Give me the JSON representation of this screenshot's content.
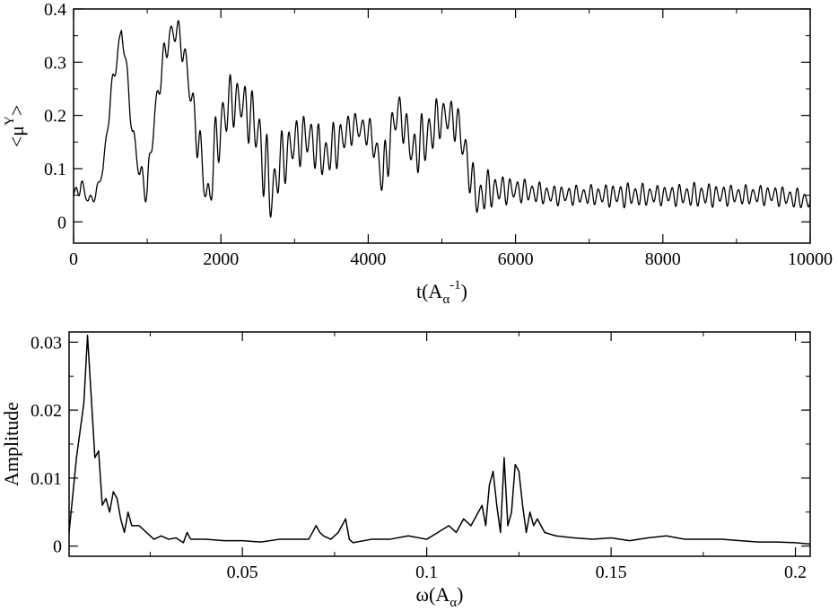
{
  "chart_data": [
    {
      "type": "line",
      "xlabel": {
        "main": "t(A",
        "sub": "α",
        "sup": "-1",
        "close": ")"
      },
      "ylabel": {
        "open": "<",
        "main": "μ",
        "sup": "Y",
        "close": ">"
      },
      "xlim": [
        0,
        10000
      ],
      "ylim": [
        -0.04,
        0.4
      ],
      "xticks": [
        0,
        2000,
        4000,
        6000,
        8000,
        10000
      ],
      "xtick_labels": [
        "0",
        "2000",
        "4000",
        "6000",
        "8000",
        "10000"
      ],
      "yticks": [
        0,
        0.1,
        0.2,
        0.3,
        0.4
      ],
      "ytick_labels": [
        "0",
        "0.1",
        "0.2",
        "0.3",
        "0.4"
      ],
      "grid": false,
      "series": [
        {
          "color": "#000000",
          "x": [
            0,
            100,
            200,
            300,
            400,
            500,
            600,
            650,
            700,
            800,
            900,
            1000,
            1100,
            1200,
            1300,
            1400,
            1500,
            1600,
            1700,
            1800,
            1850,
            1900,
            2000,
            2100,
            2200,
            2300,
            2400,
            2500,
            2600,
            2700,
            2800,
            3000,
            3200,
            3400,
            3600,
            3800,
            4000,
            4100,
            4200,
            4300,
            4400,
            4500,
            4600,
            4800,
            5000,
            5200,
            5300,
            5400,
            5500,
            5600,
            5800,
            6000,
            6500,
            7000,
            7500,
            8000,
            8500,
            9000,
            9500,
            10000
          ],
          "center": [
            0.05,
            0.07,
            0.04,
            0.05,
            0.1,
            0.23,
            0.32,
            0.36,
            0.31,
            0.17,
            0.09,
            0.06,
            0.2,
            0.29,
            0.35,
            0.36,
            0.32,
            0.23,
            0.15,
            0.05,
            0.05,
            0.12,
            0.18,
            0.22,
            0.23,
            0.22,
            0.2,
            0.17,
            0.1,
            0.05,
            0.11,
            0.15,
            0.16,
            0.12,
            0.15,
            0.18,
            0.17,
            0.14,
            0.08,
            0.16,
            0.21,
            0.18,
            0.13,
            0.16,
            0.2,
            0.19,
            0.14,
            0.08,
            0.04,
            0.06,
            0.06,
            0.06,
            0.05,
            0.05,
            0.05,
            0.05,
            0.05,
            0.05,
            0.05,
            0.04
          ],
          "oscillation": [
            0.005,
            0.02,
            0.01,
            0.01,
            0.01,
            0.02,
            0.02,
            0.01,
            0.02,
            0.02,
            0.03,
            0.03,
            0.03,
            0.03,
            0.03,
            0.03,
            0.03,
            0.04,
            0.05,
            0.04,
            0.04,
            0.06,
            0.07,
            0.06,
            0.05,
            0.05,
            0.06,
            0.07,
            0.08,
            0.07,
            0.06,
            0.05,
            0.05,
            0.05,
            0.05,
            0.03,
            0.03,
            0.04,
            0.05,
            0.06,
            0.04,
            0.04,
            0.05,
            0.06,
            0.04,
            0.04,
            0.05,
            0.04,
            0.05,
            0.04,
            0.03,
            0.025,
            0.02,
            0.02,
            0.025,
            0.02,
            0.025,
            0.02,
            0.02,
            0.02
          ],
          "oscillation_period": 100,
          "samples": 2000
        }
      ]
    },
    {
      "type": "line",
      "xlabel": {
        "main": "ω(A",
        "sub": "α",
        "close": ")"
      },
      "ylabel": {
        "main": "Amplitude"
      },
      "xlim": [
        0.003,
        0.204
      ],
      "ylim": [
        -0.0015,
        0.0315
      ],
      "xticks": [
        0.05,
        0.1,
        0.15,
        0.2
      ],
      "xtick_labels": [
        "0.05",
        "0.1",
        "0.15",
        "0.2"
      ],
      "yticks": [
        0,
        0.01,
        0.02,
        0.03
      ],
      "ytick_labels": [
        "0",
        "0.01",
        "0.02",
        "0.03"
      ],
      "grid": false,
      "series": [
        {
          "color": "#000000",
          "x": [
            0.003,
            0.005,
            0.007,
            0.008,
            0.009,
            0.01,
            0.011,
            0.012,
            0.013,
            0.014,
            0.015,
            0.016,
            0.017,
            0.018,
            0.019,
            0.02,
            0.022,
            0.024,
            0.026,
            0.028,
            0.03,
            0.032,
            0.034,
            0.035,
            0.036,
            0.04,
            0.045,
            0.05,
            0.055,
            0.06,
            0.065,
            0.068,
            0.07,
            0.071,
            0.072,
            0.074,
            0.076,
            0.078,
            0.079,
            0.08,
            0.085,
            0.09,
            0.095,
            0.1,
            0.103,
            0.106,
            0.108,
            0.11,
            0.112,
            0.113,
            0.114,
            0.115,
            0.116,
            0.117,
            0.118,
            0.119,
            0.12,
            0.121,
            0.122,
            0.123,
            0.124,
            0.125,
            0.126,
            0.127,
            0.128,
            0.129,
            0.13,
            0.132,
            0.135,
            0.14,
            0.145,
            0.15,
            0.155,
            0.16,
            0.165,
            0.17,
            0.175,
            0.18,
            0.185,
            0.19,
            0.195,
            0.2,
            0.204
          ],
          "y": [
            0.002,
            0.013,
            0.021,
            0.031,
            0.022,
            0.013,
            0.014,
            0.006,
            0.007,
            0.005,
            0.008,
            0.007,
            0.004,
            0.002,
            0.005,
            0.003,
            0.003,
            0.002,
            0.001,
            0.0015,
            0.001,
            0.0012,
            0.0005,
            0.002,
            0.001,
            0.001,
            0.0008,
            0.0008,
            0.0006,
            0.001,
            0.001,
            0.001,
            0.003,
            0.002,
            0.0015,
            0.001,
            0.002,
            0.004,
            0.001,
            0.0005,
            0.001,
            0.001,
            0.0015,
            0.001,
            0.002,
            0.003,
            0.002,
            0.004,
            0.003,
            0.004,
            0.005,
            0.006,
            0.003,
            0.009,
            0.011,
            0.006,
            0.002,
            0.013,
            0.003,
            0.005,
            0.012,
            0.011,
            0.006,
            0.002,
            0.005,
            0.003,
            0.004,
            0.002,
            0.0015,
            0.0012,
            0.001,
            0.0012,
            0.0008,
            0.0012,
            0.0015,
            0.001,
            0.001,
            0.001,
            0.0008,
            0.0006,
            0.0006,
            0.0005,
            0.0003
          ]
        }
      ]
    }
  ]
}
